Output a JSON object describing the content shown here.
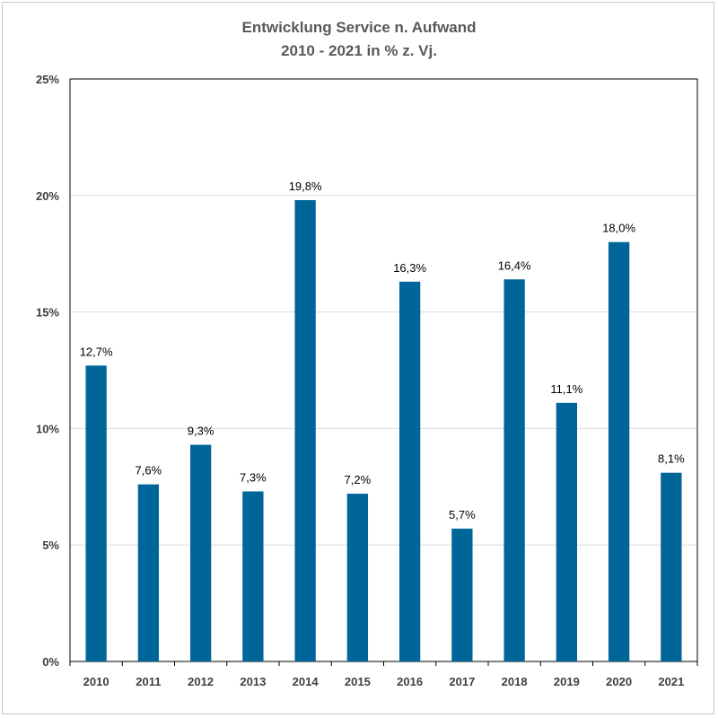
{
  "chart_data": {
    "type": "bar",
    "title": "Entwicklung Service n. Aufwand",
    "subtitle": "2010 - 2021 in % z. Vj.",
    "categories": [
      "2010",
      "2011",
      "2012",
      "2013",
      "2014",
      "2015",
      "2016",
      "2017",
      "2018",
      "2019",
      "2020",
      "2021"
    ],
    "values": [
      12.7,
      7.6,
      9.3,
      7.3,
      19.8,
      7.2,
      16.3,
      5.7,
      16.4,
      11.1,
      18.0,
      8.1
    ],
    "data_labels": [
      "12,7%",
      "7,6%",
      "9,3%",
      "7,3%",
      "19,8%",
      "7,2%",
      "16,3%",
      "5,7%",
      "16,4%",
      "11,1%",
      "18,0%",
      "8,1%"
    ],
    "y_ticks": [
      0,
      5,
      10,
      15,
      20,
      25
    ],
    "y_tick_labels": [
      "0%",
      "5%",
      "10%",
      "15%",
      "20%",
      "25%"
    ],
    "ylim": [
      0,
      25
    ],
    "xlabel": "",
    "ylabel": "",
    "grid": true,
    "bar_color": "#006699",
    "grid_color": "#d9d9d9"
  }
}
